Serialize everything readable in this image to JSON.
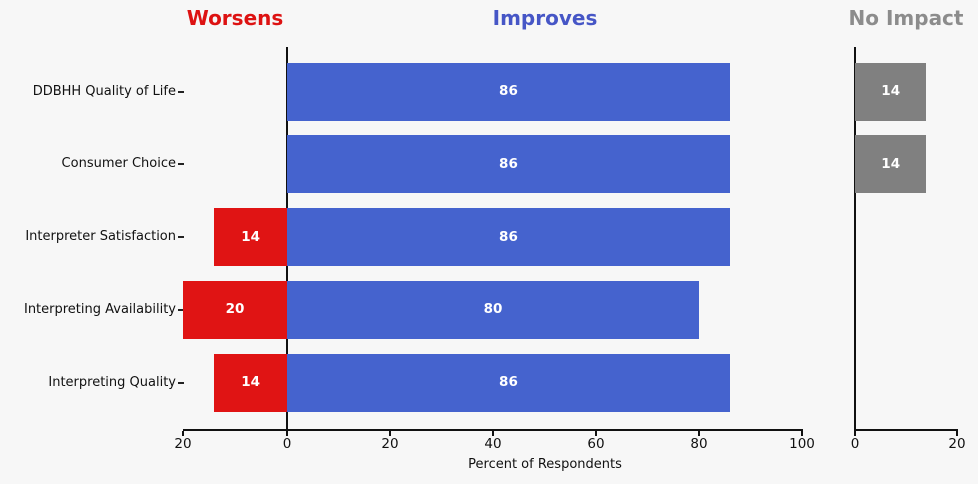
{
  "background_color": "#f7f7f7",
  "chart_data": {
    "type": "bar",
    "orientation": "horizontal-diverging",
    "title": "",
    "xlabel": "Percent of Respondents",
    "ylabel": "",
    "grid": false,
    "legend_position": "panel-titles-top",
    "categories": [
      "DDBHH Quality of Life",
      "Consumer Choice",
      "Interpreter Satisfaction",
      "Interpreting Availability",
      "Interpreting Quality"
    ],
    "series": [
      {
        "name": "Worsens",
        "color": "#e01414",
        "title_color": "#dd1212",
        "values": [
          0,
          0,
          14,
          20,
          14
        ],
        "axis_ticks": [
          20,
          0
        ],
        "axis_range": [
          20,
          0
        ],
        "inverted_axis": true
      },
      {
        "name": "Improves",
        "color": "#4563ce",
        "title_color": "#4656c6",
        "values": [
          86,
          86,
          86,
          80,
          86
        ],
        "axis_ticks": [
          0,
          20,
          40,
          60,
          80,
          100
        ],
        "axis_range": [
          0,
          100
        ],
        "inverted_axis": false
      },
      {
        "name": "No Impact",
        "color": "#808080",
        "title_color": "#8c8c8c",
        "values": [
          14,
          14,
          0,
          0,
          0
        ],
        "axis_ticks": [
          0,
          20
        ],
        "axis_range": [
          0,
          20
        ],
        "inverted_axis": false
      }
    ],
    "value_labels": {
      "shown": true,
      "color": "#ffffff",
      "bold": true
    }
  }
}
